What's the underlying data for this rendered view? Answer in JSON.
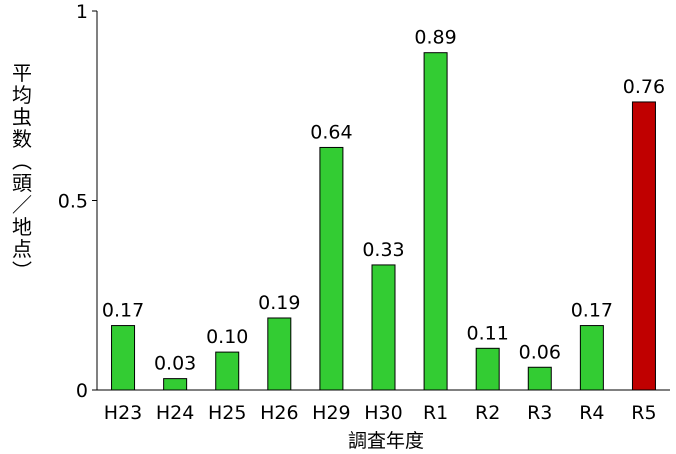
{
  "chart_data": {
    "type": "bar",
    "title": "",
    "xlabel": "調査年度",
    "ylabel": "平均虫数（頭／地点）",
    "ylim": [
      0,
      1
    ],
    "yticks": [
      "0",
      "0.5",
      "1"
    ],
    "categories": [
      "H23",
      "H24",
      "H25",
      "H26",
      "H29",
      "H30",
      "R1",
      "R2",
      "R3",
      "R4",
      "R5"
    ],
    "values": [
      0.17,
      0.03,
      0.1,
      0.19,
      0.64,
      0.33,
      0.89,
      0.11,
      0.06,
      0.17,
      0.76
    ],
    "value_labels": [
      "0.17",
      "0.03",
      "0.10",
      "0.19",
      "0.64",
      "0.33",
      "0.89",
      "0.11",
      "0.06",
      "0.17",
      "0.76"
    ],
    "colors": {
      "default": "#33cc33",
      "highlight": "#c00000",
      "edge": "#000000"
    },
    "highlight_category": "R5",
    "grid": false,
    "legend": "none"
  }
}
